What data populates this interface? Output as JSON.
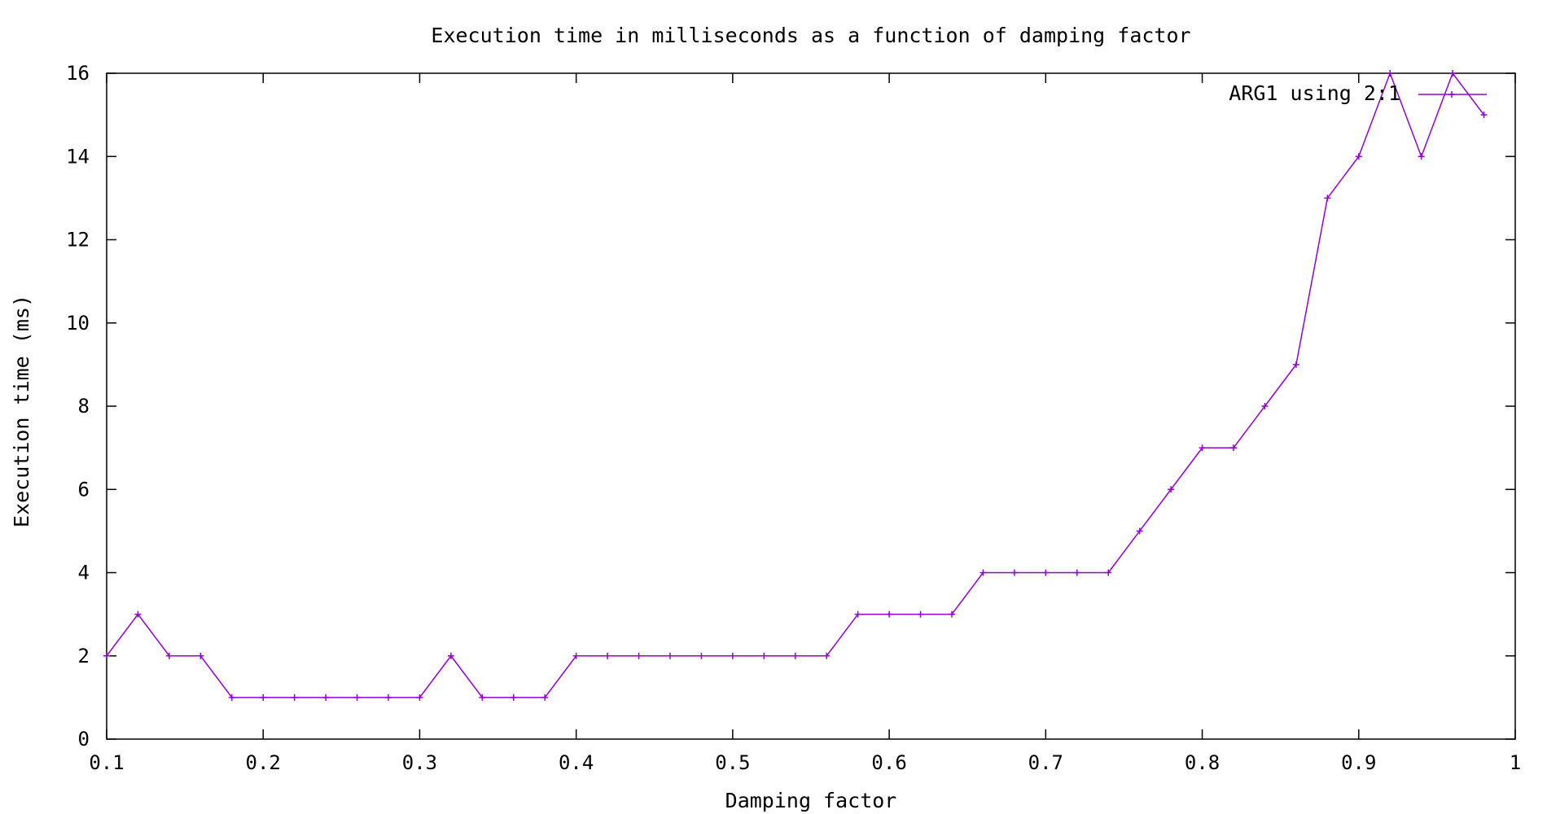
{
  "chart_data": {
    "type": "line",
    "title": "Execution time in milliseconds as a function of damping factor",
    "xlabel": "Damping factor",
    "ylabel": "Execution time (ms)",
    "xlim": [
      0.1,
      1
    ],
    "ylim": [
      0,
      16
    ],
    "x_ticks": [
      "0.1",
      "0.2",
      "0.3",
      "0.4",
      "0.5",
      "0.6",
      "0.7",
      "0.8",
      "0.9",
      "1"
    ],
    "y_ticks": [
      "0",
      "2",
      "4",
      "6",
      "8",
      "10",
      "12",
      "14",
      "16"
    ],
    "grid": false,
    "legend_position": "top-right",
    "series": [
      {
        "name": "ARG1 using 2:1",
        "color": "#9400D3",
        "marker": "plus",
        "x": [
          0.1,
          0.12,
          0.14,
          0.16,
          0.18,
          0.2,
          0.22,
          0.24,
          0.26,
          0.28,
          0.3,
          0.32,
          0.34,
          0.36,
          0.38,
          0.4,
          0.42,
          0.44,
          0.46,
          0.48,
          0.5,
          0.52,
          0.54,
          0.56,
          0.58,
          0.6,
          0.62,
          0.64,
          0.66,
          0.68,
          0.7,
          0.72,
          0.74,
          0.76,
          0.78,
          0.8,
          0.82,
          0.84,
          0.86,
          0.88,
          0.9,
          0.92,
          0.94,
          0.96,
          0.98
        ],
        "y": [
          2,
          3,
          2,
          2,
          1,
          1,
          1,
          1,
          1,
          1,
          1,
          2,
          1,
          1,
          1,
          2,
          2,
          2,
          2,
          2,
          2,
          2,
          2,
          2,
          3,
          3,
          3,
          3,
          4,
          4,
          4,
          4,
          4,
          5,
          6,
          7,
          7,
          8,
          9,
          13,
          14,
          16,
          14,
          16,
          15
        ]
      }
    ]
  }
}
